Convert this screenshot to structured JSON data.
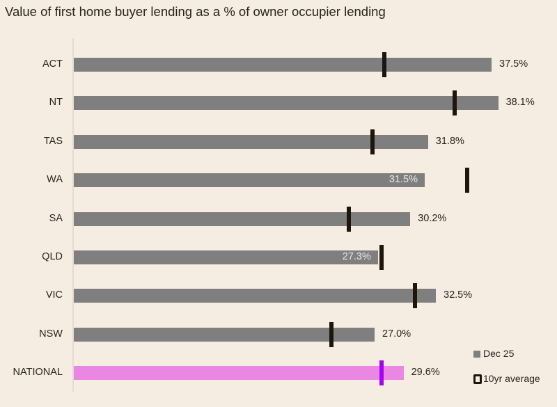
{
  "chart_data": {
    "type": "bar",
    "orientation": "horizontal",
    "title": "Value of first home buyer lending as a % of owner occupier lending",
    "xlabel": "",
    "ylabel": "",
    "categories": [
      "ACT",
      "NT",
      "TAS",
      "WA",
      "SA",
      "QLD",
      "VIC",
      "NSW",
      "NATIONAL"
    ],
    "series": [
      {
        "name": "Dec 25",
        "type": "bar",
        "values": [
          37.5,
          38.1,
          31.8,
          31.5,
          30.2,
          27.3,
          32.5,
          27.0,
          29.6
        ]
      },
      {
        "name": "10yr average",
        "type": "marker",
        "values": [
          27.9,
          34.2,
          26.8,
          35.3,
          24.7,
          27.6,
          30.6,
          23.1,
          27.6
        ]
      }
    ],
    "value_labels": [
      "37.5%",
      "38.1%",
      "31.8%",
      "31.5%",
      "30.2%",
      "27.3%",
      "32.5%",
      "27.0%",
      "29.6%"
    ],
    "label_inside": [
      false,
      false,
      false,
      true,
      false,
      true,
      false,
      false,
      false
    ],
    "highlight_category": "NATIONAL",
    "xlim": [
      0,
      43
    ],
    "grid": false,
    "legend_position": "bottom-right",
    "colors": {
      "bar": "#7f7f7f",
      "marker": "#1e160b",
      "national_bar": "#ea87e3",
      "national_marker": "#a800f5",
      "background": "#f5ede1"
    }
  },
  "legend": {
    "items": [
      {
        "label": "Dec 25"
      },
      {
        "label": "10yr average"
      }
    ]
  }
}
